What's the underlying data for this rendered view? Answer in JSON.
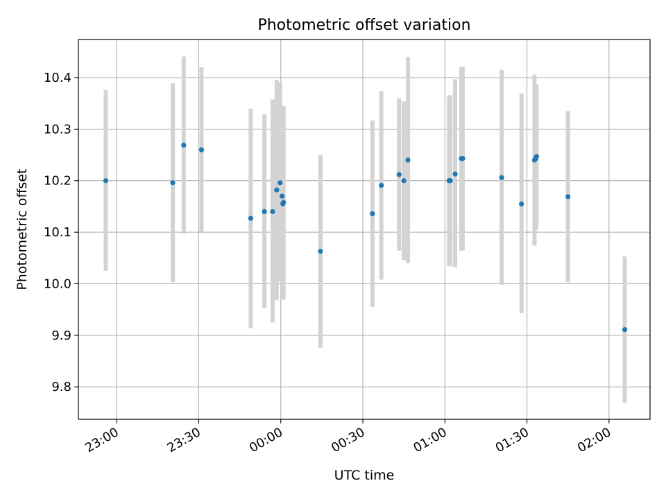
{
  "chart_data": {
    "type": "scatter",
    "title": "Photometric offset variation",
    "xlabel": "UTC time",
    "ylabel": "Photometric offset",
    "xlim": [
      "2023-01-01T22:46:00",
      "2023-01-02T02:15:00"
    ],
    "ylim": [
      9.737,
      10.474
    ],
    "grid": true,
    "x_ticks": [
      {
        "time": "2023-01-01T23:00:00",
        "label": "23:00"
      },
      {
        "time": "2023-01-01T23:30:00",
        "label": "23:30"
      },
      {
        "time": "2023-01-02T00:00:00",
        "label": "00:00"
      },
      {
        "time": "2023-01-02T00:30:00",
        "label": "00:30"
      },
      {
        "time": "2023-01-02T01:00:00",
        "label": "01:00"
      },
      {
        "time": "2023-01-02T01:30:00",
        "label": "01:30"
      },
      {
        "time": "2023-01-02T02:00:00",
        "label": "02:00"
      }
    ],
    "y_ticks": [
      {
        "value": 9.8,
        "label": "9.8"
      },
      {
        "value": 9.9,
        "label": "9.9"
      },
      {
        "value": 10.0,
        "label": "10.0"
      },
      {
        "value": 10.1,
        "label": "10.1"
      },
      {
        "value": 10.2,
        "label": "10.2"
      },
      {
        "value": 10.3,
        "label": "10.3"
      },
      {
        "value": 10.4,
        "label": "10.4"
      }
    ],
    "marker_color": "#1f77b4",
    "errorbar_color": "#d3d3d3",
    "points": [
      {
        "time": "2023-01-01T22:56:00",
        "y": 10.2,
        "err_low": 10.025,
        "err_high": 10.376
      },
      {
        "time": "2023-01-01T23:20:30",
        "y": 10.196,
        "err_low": 10.003,
        "err_high": 10.389
      },
      {
        "time": "2023-01-01T23:24:30",
        "y": 10.269,
        "err_low": 10.097,
        "err_high": 10.441
      },
      {
        "time": "2023-01-01T23:31:00",
        "y": 10.26,
        "err_low": 10.101,
        "err_high": 10.42
      },
      {
        "time": "2023-01-01T23:49:00",
        "y": 10.127,
        "err_low": 9.914,
        "err_high": 10.34
      },
      {
        "time": "2023-01-01T23:54:00",
        "y": 10.14,
        "err_low": 9.953,
        "err_high": 10.329
      },
      {
        "time": "2023-01-01T23:57:00",
        "y": 10.14,
        "err_low": 9.925,
        "err_high": 10.358
      },
      {
        "time": "2023-01-01T23:58:30",
        "y": 10.182,
        "err_low": 9.968,
        "err_high": 10.396
      },
      {
        "time": "2023-01-01T23:59:45",
        "y": 10.196,
        "err_low": 10.005,
        "err_high": 10.391
      },
      {
        "time": "2023-01-02T00:00:30",
        "y": 10.17,
        "err_low": 10.004,
        "err_high": 10.335
      },
      {
        "time": "2023-01-02T00:00:45",
        "y": 10.155,
        "err_low": 9.969,
        "err_high": 10.345
      },
      {
        "time": "2023-01-02T00:01:00",
        "y": 10.158,
        "err_low": 9.97,
        "err_high": 10.343
      },
      {
        "time": "2023-01-02T00:14:30",
        "y": 10.063,
        "err_low": 9.876,
        "err_high": 10.25
      },
      {
        "time": "2023-01-02T00:33:30",
        "y": 10.136,
        "err_low": 9.955,
        "err_high": 10.317
      },
      {
        "time": "2023-01-02T00:36:45",
        "y": 10.191,
        "err_low": 10.008,
        "err_high": 10.374
      },
      {
        "time": "2023-01-02T00:43:15",
        "y": 10.212,
        "err_low": 10.064,
        "err_high": 10.36
      },
      {
        "time": "2023-01-02T00:45:00",
        "y": 10.2,
        "err_low": 10.046,
        "err_high": 10.354
      },
      {
        "time": "2023-01-02T00:46:30",
        "y": 10.24,
        "err_low": 10.04,
        "err_high": 10.44
      },
      {
        "time": "2023-01-02T01:01:30",
        "y": 10.2,
        "err_low": 10.035,
        "err_high": 10.364
      },
      {
        "time": "2023-01-02T01:02:00",
        "y": 10.2,
        "err_low": 10.034,
        "err_high": 10.366
      },
      {
        "time": "2023-01-02T01:03:45",
        "y": 10.213,
        "err_low": 10.032,
        "err_high": 10.397
      },
      {
        "time": "2023-01-02T01:06:00",
        "y": 10.243,
        "err_low": 10.064,
        "err_high": 10.421
      },
      {
        "time": "2023-01-02T01:06:30",
        "y": 10.243,
        "err_low": 10.065,
        "err_high": 10.421
      },
      {
        "time": "2023-01-02T01:20:45",
        "y": 10.206,
        "err_low": 9.998,
        "err_high": 10.415
      },
      {
        "time": "2023-01-02T01:28:00",
        "y": 10.155,
        "err_low": 9.943,
        "err_high": 10.369
      },
      {
        "time": "2023-01-02T01:32:45",
        "y": 10.24,
        "err_low": 10.074,
        "err_high": 10.406
      },
      {
        "time": "2023-01-02T01:33:15",
        "y": 10.243,
        "err_low": 10.104,
        "err_high": 10.387
      },
      {
        "time": "2023-01-02T01:33:30",
        "y": 10.247,
        "err_low": 10.109,
        "err_high": 10.386
      },
      {
        "time": "2023-01-02T01:45:00",
        "y": 10.169,
        "err_low": 10.003,
        "err_high": 10.335
      },
      {
        "time": "2023-01-02T02:05:45",
        "y": 9.911,
        "err_low": 9.769,
        "err_high": 10.053
      }
    ]
  }
}
